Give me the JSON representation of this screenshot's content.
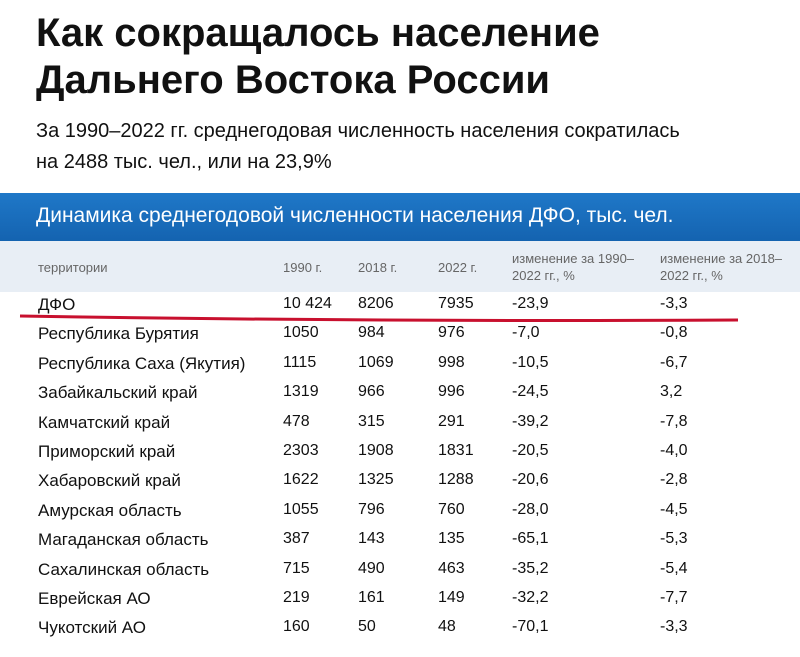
{
  "header": {
    "title": "Как сокращалось население Дальнего Востока России",
    "subtitle": "За 1990–2022 гг. среднегодовая численность населения сократилась на 2488 тыс. чел., или на 23,9%"
  },
  "table": {
    "caption": "Динамика среднегодовой численности населения ДФО, тыс. чел.",
    "columns": [
      "территории",
      "1990 г.",
      "2018 г.",
      "2022 г.",
      "изменение за 1990–2022 гг., %",
      "изменение за 2018–2022 гг., %"
    ],
    "rows": [
      [
        "ДФО",
        "10 424",
        "8206",
        "7935",
        "-23,9",
        "-3,3"
      ],
      [
        "Республика Бурятия",
        "1050",
        "984",
        "976",
        "-7,0",
        "-0,8"
      ],
      [
        "Республика Саха (Якутия)",
        "1115",
        "1069",
        "998",
        "-10,5",
        "-6,7"
      ],
      [
        "Забайкальский край",
        "1319",
        "966",
        "996",
        "-24,5",
        "3,2"
      ],
      [
        "Камчатский край",
        "478",
        "315",
        "291",
        "-39,2",
        "-7,8"
      ],
      [
        "Приморский край",
        "2303",
        "1908",
        "1831",
        "-20,5",
        "-4,0"
      ],
      [
        "Хабаровский край",
        "1622",
        "1325",
        "1288",
        "-20,6",
        "-2,8"
      ],
      [
        "Амурская область",
        "1055",
        "796",
        "760",
        "-28,0",
        "-4,5"
      ],
      [
        "Магаданская область",
        "387",
        "143",
        "135",
        "-65,1",
        "-5,3"
      ],
      [
        "Сахалинская область",
        "715",
        "490",
        "463",
        "-35,2",
        "-5,4"
      ],
      [
        "Еврейская АО",
        "219",
        "161",
        "149",
        "-32,2",
        "-7,7"
      ],
      [
        "Чукотский АО",
        "160",
        "50",
        "48",
        "-70,1",
        "-3,3"
      ]
    ]
  }
}
